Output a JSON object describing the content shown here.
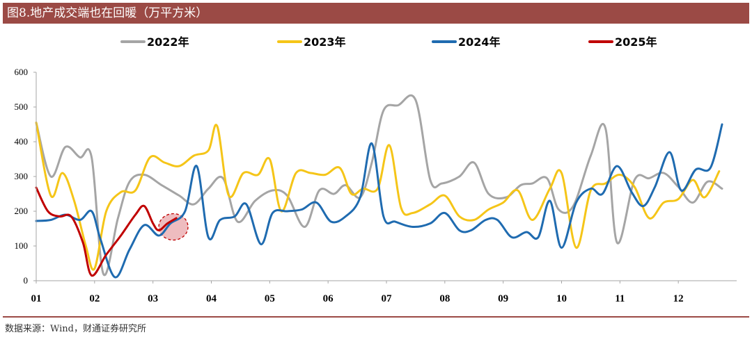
{
  "title": "图8.地产成交端也在回暖（万平方米）",
  "source": "数据来源：Wind，财通证券研究所",
  "chart_data": {
    "type": "line",
    "title": "图8.地产成交端也在回暖（万平方米）",
    "xlabel": "",
    "ylabel": "",
    "ylim": [
      0,
      600
    ],
    "yticks": [
      0,
      100,
      200,
      300,
      400,
      500,
      600
    ],
    "xlim": [
      1,
      13
    ],
    "categories": [
      "01",
      "02",
      "03",
      "04",
      "05",
      "06",
      "07",
      "08",
      "09",
      "10",
      "11",
      "12"
    ],
    "grid": false,
    "legend_position": "top",
    "series": [
      {
        "name": "2022年",
        "color": "#a5a5a5",
        "x": [
          1.0,
          1.25,
          1.5,
          1.75,
          1.95,
          2.15,
          2.4,
          2.6,
          2.85,
          3.15,
          3.45,
          3.7,
          3.95,
          4.2,
          4.45,
          4.75,
          5.05,
          5.3,
          5.6,
          5.85,
          6.1,
          6.3,
          6.55,
          6.75,
          6.95,
          7.2,
          7.5,
          7.75,
          7.95,
          8.25,
          8.5,
          8.75,
          9.05,
          9.3,
          9.5,
          9.75,
          9.95,
          10.2,
          10.5,
          10.75,
          10.95,
          11.25,
          11.5,
          11.75,
          12.0,
          12.25,
          12.5,
          12.75
        ],
        "y": [
          455,
          300,
          385,
          355,
          355,
          20,
          180,
          285,
          305,
          275,
          245,
          220,
          265,
          295,
          170,
          230,
          260,
          245,
          155,
          260,
          250,
          275,
          240,
          340,
          490,
          505,
          520,
          290,
          280,
          300,
          340,
          250,
          240,
          275,
          280,
          295,
          205,
          215,
          360,
          440,
          110,
          290,
          295,
          310,
          270,
          225,
          285,
          265
        ]
      },
      {
        "name": "2023年",
        "color": "#f5c518",
        "x": [
          1.0,
          1.25,
          1.45,
          1.65,
          1.85,
          2.0,
          2.2,
          2.45,
          2.7,
          2.95,
          3.2,
          3.45,
          3.7,
          3.95,
          4.1,
          4.3,
          4.55,
          4.8,
          5.0,
          5.2,
          5.45,
          5.7,
          5.95,
          6.2,
          6.4,
          6.6,
          6.85,
          7.05,
          7.25,
          7.45,
          7.75,
          8.0,
          8.25,
          8.5,
          8.75,
          9.0,
          9.25,
          9.5,
          9.8,
          10.0,
          10.25,
          10.5,
          10.75,
          11.0,
          11.25,
          11.5,
          11.75,
          12.0,
          12.25,
          12.45,
          12.7
        ],
        "y": [
          455,
          245,
          310,
          230,
          100,
          35,
          200,
          255,
          260,
          355,
          340,
          330,
          360,
          375,
          445,
          245,
          310,
          305,
          350,
          200,
          310,
          310,
          305,
          325,
          250,
          265,
          265,
          390,
          210,
          195,
          220,
          245,
          185,
          175,
          205,
          225,
          260,
          175,
          265,
          310,
          95,
          260,
          280,
          305,
          270,
          180,
          225,
          235,
          290,
          240,
          315
        ]
      },
      {
        "name": "2024年",
        "color": "#1f6bb0",
        "x": [
          1.0,
          1.25,
          1.5,
          1.75,
          1.95,
          2.1,
          2.35,
          2.6,
          2.85,
          3.1,
          3.3,
          3.55,
          3.75,
          3.95,
          4.15,
          4.4,
          4.6,
          4.85,
          5.05,
          5.3,
          5.55,
          5.8,
          6.05,
          6.3,
          6.55,
          6.75,
          6.95,
          7.15,
          7.45,
          7.75,
          8.0,
          8.25,
          8.45,
          8.7,
          8.9,
          9.15,
          9.4,
          9.6,
          9.8,
          10.0,
          10.25,
          10.5,
          10.7,
          10.95,
          11.2,
          11.4,
          11.6,
          11.85,
          12.05,
          12.3,
          12.55,
          12.75
        ],
        "y": [
          172,
          175,
          190,
          175,
          200,
          120,
          10,
          90,
          160,
          130,
          165,
          200,
          330,
          125,
          175,
          185,
          220,
          105,
          195,
          200,
          205,
          225,
          170,
          185,
          240,
          395,
          185,
          170,
          155,
          165,
          195,
          145,
          145,
          175,
          175,
          125,
          140,
          125,
          230,
          95,
          225,
          265,
          250,
          330,
          255,
          215,
          270,
          370,
          260,
          320,
          325,
          450
        ]
      },
      {
        "name": "2025年",
        "color": "#c00000",
        "x": [
          1.0,
          1.2,
          1.4,
          1.6,
          1.8,
          1.95,
          2.2,
          2.45,
          2.7,
          2.85,
          3.0,
          3.1,
          3.25,
          3.4
        ],
        "y": [
          268,
          200,
          185,
          185,
          110,
          15,
          75,
          130,
          190,
          215,
          165,
          145,
          165,
          180
        ]
      }
    ],
    "annotations": [
      {
        "type": "highlight-circle",
        "x": 3.35,
        "y": 155,
        "color": "#e8a6a9"
      }
    ]
  }
}
